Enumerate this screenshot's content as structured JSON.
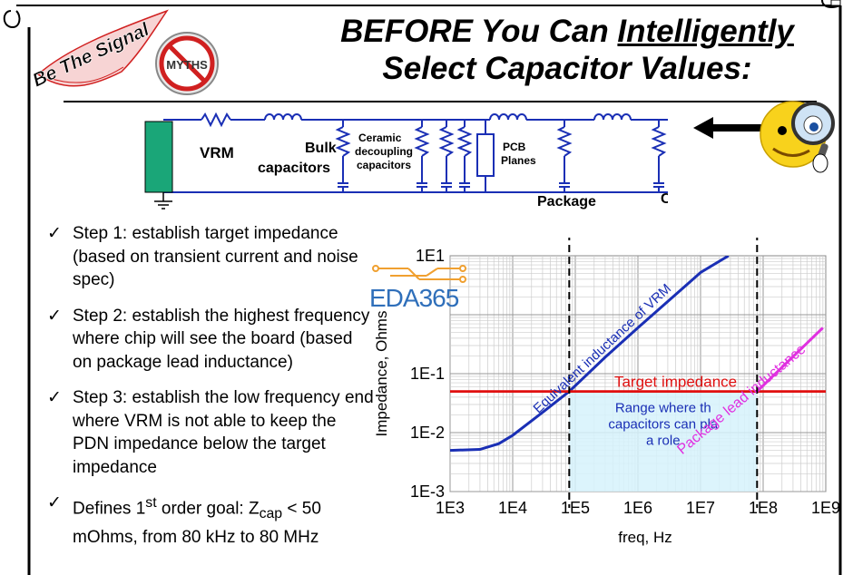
{
  "slide": {
    "title_line1_prefix": "BEFORE You Can ",
    "title_line1_underlined": "Intelligently",
    "title_line2": "Select Capacitor Values:"
  },
  "badge": {
    "text": "Be The Signal",
    "myths_label": "MYTHS"
  },
  "circuit": {
    "vrm_label": "VRM",
    "bulk_label_1": "Bulk",
    "bulk_label_2": "capacitors",
    "ceramic_label_1": "Ceramic",
    "ceramic_label_2": "decoupling",
    "ceramic_label_3": "capacitors",
    "pcb_label_1": "PCB",
    "pcb_label_2": "Planes",
    "package_label": "Package",
    "cut_label": "C"
  },
  "steps": [
    {
      "check": "✓",
      "text": "Step 1: establish target impedance (based on transient current and noise spec)"
    },
    {
      "check": "✓",
      "text": "Step 2: establish the highest frequency where chip will see the board (based on package lead inductance)"
    },
    {
      "check": "✓",
      "text": "Step 3: establish the low frequency end where VRM is not able to keep the PDN impedance below the target impedance"
    }
  ],
  "step4": {
    "check": "✓",
    "part1": "Defines 1",
    "sup": "st",
    "part2": " order goal: Z",
    "sub": "cap",
    "part3": " < 50 mOhms, from 80 kHz to 80 MHz"
  },
  "watermark": {
    "text": "EDA365"
  },
  "chart_data": {
    "type": "line",
    "x_scale": "log",
    "y_scale": "log",
    "xlabel": "freq, Hz",
    "ylabel": "Impedance, Ohms",
    "xlim": [
      1000,
      1000000000
    ],
    "ylim": [
      0.001,
      10
    ],
    "x_ticks": [
      "1E3",
      "1E4",
      "1E5",
      "1E6",
      "1E7",
      "1E8",
      "1E9"
    ],
    "y_ticks": [
      "1E-3",
      "1E-2",
      "1E-1",
      "1E1"
    ],
    "grid": true,
    "series": [
      {
        "name": "Equivalent inductance of VRM",
        "color": "#1a2fb5",
        "x": [
          1000,
          3000,
          6000,
          10000,
          30000,
          80000,
          300000,
          1000000,
          10000000,
          28000000
        ],
        "y": [
          0.005,
          0.0052,
          0.0065,
          0.009,
          0.022,
          0.05,
          0.19,
          0.6,
          5.2,
          10
        ]
      },
      {
        "name": "Target impedance",
        "color": "#e01010",
        "x": [
          1000,
          1000000000
        ],
        "y": [
          0.05,
          0.05
        ]
      },
      {
        "name": "Package lead inductance",
        "color": "#e030e0",
        "x": [
          80000000,
          900000000
        ],
        "y": [
          0.05,
          0.6
        ]
      }
    ],
    "vertical_markers": [
      80000,
      80000000
    ],
    "region": {
      "label": "Range where the capacitors can play a role",
      "x": [
        80000,
        80000000
      ],
      "y": [
        0.001,
        0.05
      ],
      "color": "#d6f2fb"
    }
  }
}
